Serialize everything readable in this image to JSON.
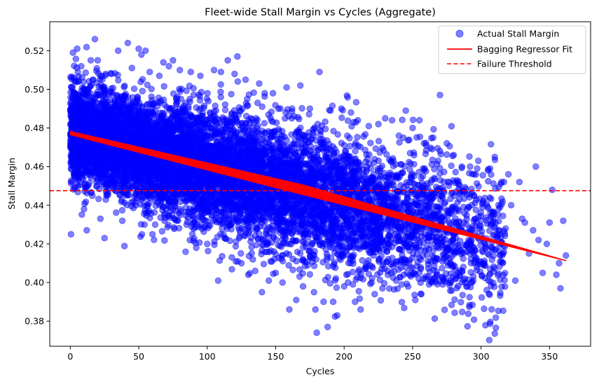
{
  "chart_data": {
    "type": "scatter",
    "title": "Fleet-wide Stall Margin vs Cycles (Aggregate)",
    "xlabel": "Cycles",
    "ylabel": "Stall Margin",
    "xlim": [
      -15,
      380
    ],
    "ylim": [
      0.367,
      0.535
    ],
    "xticks": [
      0,
      50,
      100,
      150,
      200,
      250,
      300,
      350
    ],
    "yticks": [
      0.38,
      0.4,
      0.42,
      0.44,
      0.46,
      0.48,
      0.5,
      0.52
    ],
    "legend_position": "top-right",
    "grid": false,
    "colors": {
      "scatter": "#0000ff",
      "fit": "#ff0000",
      "threshold": "#ff0000"
    },
    "series": [
      {
        "name": "Actual Stall Margin",
        "kind": "scatter",
        "points": [
          [
            0.5,
            0.425
          ],
          [
            2,
            0.519
          ],
          [
            5,
            0.521
          ],
          [
            8,
            0.512
          ],
          [
            10,
            0.438
          ],
          [
            12,
            0.427
          ],
          [
            15,
            0.515
          ],
          [
            18,
            0.526
          ],
          [
            20,
            0.515
          ],
          [
            22,
            0.433
          ],
          [
            25,
            0.423
          ],
          [
            30,
            0.508
          ],
          [
            35,
            0.52
          ],
          [
            38,
            0.432
          ],
          [
            42,
            0.524
          ],
          [
            45,
            0.511
          ],
          [
            48,
            0.44
          ],
          [
            50,
            0.521
          ],
          [
            52,
            0.518
          ],
          [
            55,
            0.52
          ],
          [
            58,
            0.509
          ],
          [
            60,
            0.425
          ],
          [
            62,
            0.43
          ],
          [
            65,
            0.507
          ],
          [
            68,
            0.514
          ],
          [
            70,
            0.438
          ],
          [
            72,
            0.512
          ],
          [
            75,
            0.515
          ],
          [
            78,
            0.432
          ],
          [
            80,
            0.51
          ],
          [
            85,
            0.43
          ],
          [
            88,
            0.509
          ],
          [
            92,
            0.418
          ],
          [
            95,
            0.507
          ],
          [
            100,
            0.42
          ],
          [
            105,
            0.51
          ],
          [
            108,
            0.401
          ],
          [
            110,
            0.509
          ],
          [
            115,
            0.515
          ],
          [
            118,
            0.413
          ],
          [
            120,
            0.508
          ],
          [
            122,
            0.517
          ],
          [
            125,
            0.41
          ],
          [
            128,
            0.505
          ],
          [
            130,
            0.404
          ],
          [
            135,
            0.406
          ],
          [
            138,
            0.503
          ],
          [
            140,
            0.395
          ],
          [
            142,
            0.498
          ],
          [
            145,
            0.401
          ],
          [
            148,
            0.498
          ],
          [
            150,
            0.405
          ],
          [
            152,
            0.49
          ],
          [
            155,
            0.4
          ],
          [
            158,
            0.501
          ],
          [
            160,
            0.386
          ],
          [
            162,
            0.49
          ],
          [
            165,
            0.391
          ],
          [
            168,
            0.502
          ],
          [
            170,
            0.398
          ],
          [
            175,
            0.49
          ],
          [
            178,
            0.395
          ],
          [
            179,
            0.386
          ],
          [
            180,
            0.374
          ],
          [
            182,
            0.509
          ],
          [
            185,
            0.39
          ],
          [
            188,
            0.377
          ],
          [
            190,
            0.489
          ],
          [
            192,
            0.39
          ],
          [
            195,
            0.383
          ],
          [
            198,
            0.49
          ],
          [
            200,
            0.398
          ],
          [
            205,
            0.488
          ],
          [
            208,
            0.39
          ],
          [
            210,
            0.484
          ],
          [
            212,
            0.386
          ],
          [
            215,
            0.407
          ],
          [
            218,
            0.481
          ],
          [
            220,
            0.4
          ],
          [
            225,
            0.482
          ],
          [
            228,
            0.397
          ],
          [
            230,
            0.485
          ],
          [
            232,
            0.404
          ],
          [
            235,
            0.484
          ],
          [
            238,
            0.401
          ],
          [
            240,
            0.476
          ],
          [
            242,
            0.399
          ],
          [
            245,
            0.489
          ],
          [
            248,
            0.404
          ],
          [
            250,
            0.48
          ],
          [
            252,
            0.391
          ],
          [
            255,
            0.484
          ],
          [
            258,
            0.402
          ],
          [
            260,
            0.471
          ],
          [
            262,
            0.399
          ],
          [
            265,
            0.475
          ],
          [
            268,
            0.404
          ],
          [
            270,
            0.468
          ],
          [
            272,
            0.399
          ],
          [
            275,
            0.472
          ],
          [
            278,
            0.401
          ],
          [
            280,
            0.466
          ],
          [
            283,
            0.405
          ],
          [
            286,
            0.46
          ],
          [
            290,
            0.398
          ],
          [
            292,
            0.46
          ],
          [
            295,
            0.41
          ],
          [
            298,
            0.463
          ],
          [
            300,
            0.432
          ],
          [
            302,
            0.421
          ],
          [
            305,
            0.458
          ],
          [
            308,
            0.418
          ],
          [
            310,
            0.465
          ],
          [
            312,
            0.425
          ],
          [
            315,
            0.452
          ],
          [
            318,
            0.428
          ],
          [
            320,
            0.456
          ],
          [
            322,
            0.44
          ],
          [
            325,
            0.401
          ],
          [
            328,
            0.452
          ],
          [
            330,
            0.433
          ],
          [
            332,
            0.431
          ],
          [
            335,
            0.415
          ],
          [
            338,
            0.427
          ],
          [
            340,
            0.46
          ],
          [
            342,
            0.422
          ],
          [
            345,
            0.405
          ],
          [
            348,
            0.42
          ],
          [
            350,
            0.431
          ],
          [
            352,
            0.448
          ],
          [
            355,
            0.404
          ],
          [
            357,
            0.41
          ],
          [
            358,
            0.397
          ],
          [
            360,
            0.432
          ],
          [
            362,
            0.414
          ]
        ]
      },
      {
        "name": "Bagging Regressor Fit",
        "kind": "line",
        "x_start": 0,
        "x_end": 362,
        "y_start_top": 0.4782,
        "y_start_bottom": 0.4765,
        "y_mid_top": 0.4505,
        "y_mid_bottom": 0.4455,
        "x_mid": 170,
        "y_end": 0.4113
      },
      {
        "name": "Failure Threshold",
        "kind": "hline",
        "y": 0.4475
      }
    ]
  }
}
